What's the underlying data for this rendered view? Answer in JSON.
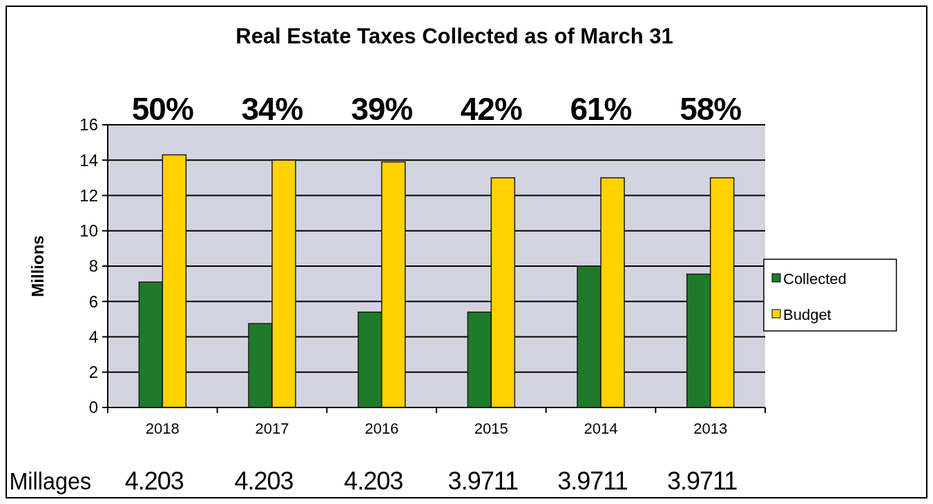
{
  "chart_data": {
    "type": "bar",
    "title": "Real Estate Taxes Collected  as of March 31",
    "ylabel": "Millions",
    "categories": [
      "2018",
      "2017",
      "2016",
      "2015",
      "2014",
      "2013"
    ],
    "series": [
      {
        "name": "Collected",
        "color": "#1f7a2a",
        "values": [
          7.1,
          4.75,
          5.4,
          5.4,
          8.0,
          7.55
        ]
      },
      {
        "name": "Budget",
        "color": "#ffd200",
        "values": [
          14.3,
          14.0,
          13.9,
          13.0,
          13.0,
          13.0
        ]
      }
    ],
    "ylim": [
      0,
      16
    ],
    "yticks": [
      0,
      2,
      4,
      6,
      8,
      10,
      12,
      14,
      16
    ],
    "grid": "y",
    "legend": "right",
    "annotations": [
      "50%",
      "34%",
      "39%",
      "42%",
      "61%",
      "58%",
      "Millages",
      "4.203",
      "4.203",
      "4.203",
      "3.9711",
      "3.9711",
      "3.9711"
    ]
  }
}
